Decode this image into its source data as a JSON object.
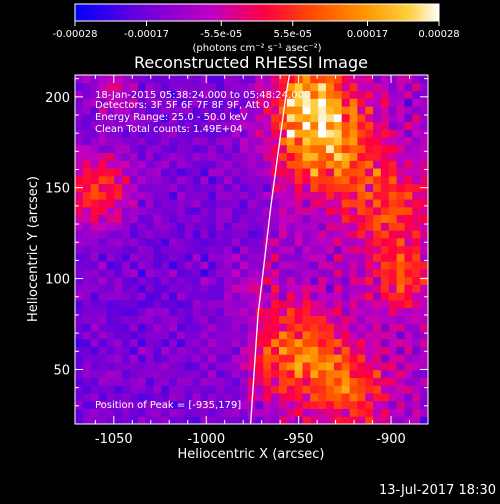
{
  "colorbar": {
    "tick_labels": [
      "-0.00028",
      "-0.00017",
      "-5.5e-05",
      "5.5e-05",
      "0.00017",
      "0.00028"
    ],
    "tick_values": [
      -0.00028,
      -0.00017,
      -5.5e-05,
      5.5e-05,
      0.00017,
      0.00028
    ],
    "unit_label": "(photons cm⁻² s⁻¹ asec⁻²)",
    "range": [
      -0.00028,
      0.00028
    ],
    "colors": [
      "#0000ff",
      "#6a00d9",
      "#c000c0",
      "#ff0040",
      "#ff5000",
      "#ff9800",
      "#ffd040",
      "#ffffff"
    ]
  },
  "chart_data": {
    "type": "heatmap",
    "title": "Reconstructed RHESSI Image",
    "xlabel": "Heliocentric X (arcsec)",
    "ylabel": "Heliocentric Y (arcsec)",
    "xlim": [
      -1071,
      -880
    ],
    "ylim": [
      20,
      212
    ],
    "x_ticks": [
      -1050,
      -1000,
      -950,
      -900
    ],
    "y_ticks": [
      50,
      100,
      150,
      200
    ],
    "x_tick_labels": [
      "-1050",
      "-1000",
      "-950",
      "-900"
    ],
    "y_tick_labels": [
      "50",
      "100",
      "150",
      "200"
    ],
    "annotations": [
      "18-Jan-2015 05:38:24.000 to 05:48:24.000",
      "Detectors: 3F 5F 6F 7F 8F 9F, Att 0",
      "Energy Range: 25.0 - 50.0 keV",
      "Clean     Total counts: 1.49E+04"
    ],
    "peak_label": "Position of Peak = [-935,179]",
    "peak": [
      -935,
      179
    ],
    "limb_curve": [
      [
        -976,
        20
      ],
      [
        -972,
        80
      ],
      [
        -965,
        140
      ],
      [
        -957,
        200
      ],
      [
        -955,
        212
      ]
    ]
  },
  "footer": {
    "timestamp": "13-Jul-2017 18:30"
  }
}
